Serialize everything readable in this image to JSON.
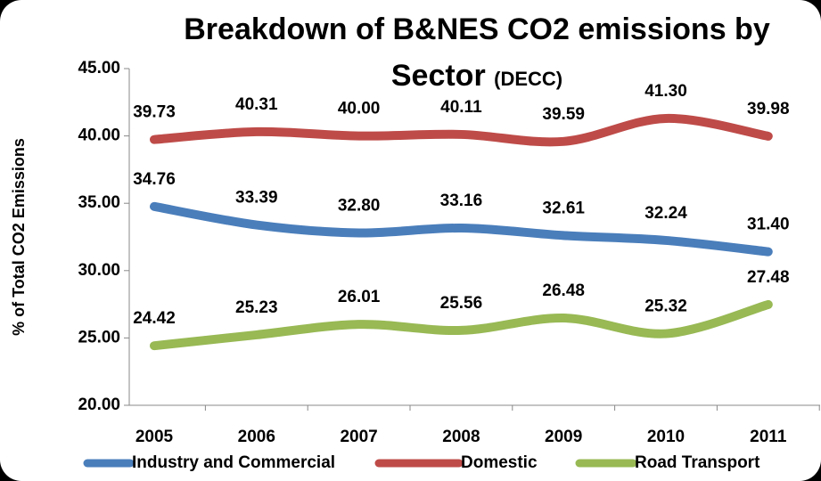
{
  "chart_data": {
    "type": "line",
    "title": "Breakdown of B&NES CO2 emissions by Sector",
    "subtitle": "(DECC)",
    "y_label": "% of Total CO2 Emissions",
    "categories": [
      "2005",
      "2006",
      "2007",
      "2008",
      "2009",
      "2010",
      "2011"
    ],
    "series": [
      {
        "name": "Industry and Commercial",
        "color": "#4a7ebb",
        "values": [
          34.76,
          33.39,
          32.8,
          33.16,
          32.61,
          32.24,
          31.4
        ],
        "value_labels": [
          "34.76",
          "33.39",
          "32.80",
          "33.16",
          "32.61",
          "32.24",
          "31.40"
        ]
      },
      {
        "name": "Domestic",
        "color": "#be4b48",
        "values": [
          39.73,
          40.31,
          40.0,
          40.11,
          39.59,
          41.3,
          39.98
        ],
        "value_labels": [
          "39.73",
          "40.31",
          "40.00",
          "40.11",
          "39.59",
          "41.30",
          "39.98"
        ]
      },
      {
        "name": "Road Transport",
        "color": "#98b954",
        "values": [
          24.42,
          25.23,
          26.01,
          25.56,
          26.48,
          25.32,
          27.48
        ],
        "value_labels": [
          "24.42",
          "25.23",
          "26.01",
          "25.56",
          "26.48",
          "25.32",
          "27.48"
        ]
      }
    ],
    "ylim": [
      20,
      45
    ],
    "yticks": [
      {
        "value": 20,
        "label": "20.00"
      },
      {
        "value": 25,
        "label": "25.00"
      },
      {
        "value": 30,
        "label": "30.00"
      },
      {
        "value": 35,
        "label": "35.00"
      },
      {
        "value": 40,
        "label": "40.00"
      },
      {
        "value": 45,
        "label": "45.00"
      }
    ],
    "legend": "bottom"
  }
}
